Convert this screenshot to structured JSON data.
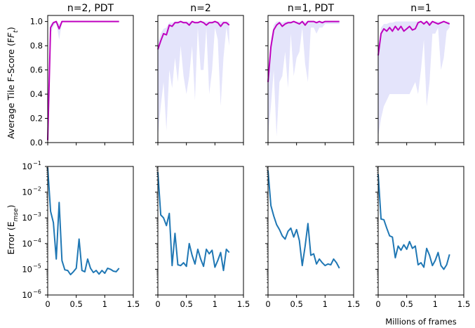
{
  "figure": {
    "xlabel": "Millions of frames",
    "ylabel_top": "Average Tile F-Score (F",
    "ylabel_top_sub": "t",
    "ylabel_top_close": ")",
    "ylabel_bottom": "Error (E",
    "ylabel_bottom_sub": "mse",
    "ylabel_bottom_close": ")"
  },
  "colors": {
    "fscore_line": "#bf00bf",
    "fscore_band": "#e4e4fb",
    "error_line": "#1f77b4",
    "axis": "#000000",
    "background": "#ffffff"
  },
  "chart_data": [
    {
      "type": "area",
      "title": "n=2, PDT",
      "ylabel": "Average Tile F-Score (Ft)",
      "xlim": [
        0,
        1.5
      ],
      "ylim": [
        0,
        1.05
      ],
      "xticks": [
        "0",
        "0.5",
        "1",
        "1.5"
      ],
      "yticks": [
        "0.0",
        "0.2",
        "0.4",
        "0.6",
        "0.8",
        "1.0"
      ],
      "x": [
        0.0,
        0.05,
        0.1,
        0.15,
        0.2,
        0.25,
        0.3,
        0.35,
        0.4,
        0.45,
        0.5,
        0.55,
        0.6,
        0.65,
        0.7,
        0.75,
        0.8,
        0.85,
        0.9,
        0.95,
        1.0,
        1.05,
        1.1,
        1.15,
        1.2,
        1.25
      ],
      "series": [
        {
          "values": [
            0.02,
            0.95,
            0.99,
            1.0,
            0.94,
            1.0,
            1.0,
            1.0,
            1.0,
            1.0,
            1.0,
            1.0,
            1.0,
            1.0,
            1.0,
            1.0,
            1.0,
            1.0,
            1.0,
            1.0,
            1.0,
            1.0,
            1.0,
            1.0,
            1.0,
            1.0
          ]
        },
        {
          "lower": [
            0.02,
            0.9,
            0.96,
            0.99,
            0.85,
            0.99,
            1.0,
            1.0,
            1.0,
            1.0,
            1.0,
            1.0,
            1.0,
            1.0,
            1.0,
            1.0,
            1.0,
            1.0,
            1.0,
            1.0,
            1.0,
            1.0,
            1.0,
            1.0,
            1.0,
            1.0
          ],
          "upper": [
            0.02,
            0.98,
            1.0,
            1.0,
            0.98,
            1.0,
            1.0,
            1.0,
            1.0,
            1.0,
            1.0,
            1.0,
            1.0,
            1.0,
            1.0,
            1.0,
            1.0,
            1.0,
            1.0,
            1.0,
            1.0,
            1.0,
            1.0,
            1.0,
            1.0,
            1.0
          ]
        }
      ]
    },
    {
      "type": "area",
      "title": "n=2",
      "xlim": [
        0,
        1.5
      ],
      "ylim": [
        0,
        1.05
      ],
      "xticks": [
        "0",
        "0.5",
        "1",
        "1.5"
      ],
      "x": [
        0.0,
        0.05,
        0.1,
        0.15,
        0.2,
        0.25,
        0.3,
        0.35,
        0.4,
        0.45,
        0.5,
        0.55,
        0.6,
        0.65,
        0.7,
        0.75,
        0.8,
        0.85,
        0.9,
        0.95,
        1.0,
        1.05,
        1.1,
        1.15,
        1.2,
        1.25
      ],
      "series": [
        {
          "values": [
            0.77,
            0.84,
            0.9,
            0.89,
            0.97,
            0.96,
            0.99,
            0.99,
            1.0,
            0.99,
            0.99,
            0.97,
            1.0,
            0.99,
            0.99,
            1.0,
            0.99,
            0.97,
            0.99,
            0.99,
            1.0,
            0.99,
            0.96,
            0.99,
            0.99,
            0.97
          ]
        },
        {
          "lower": [
            0.05,
            0.3,
            0.5,
            0.1,
            0.6,
            0.45,
            0.7,
            0.5,
            0.8,
            0.55,
            0.4,
            0.55,
            0.8,
            0.35,
            0.95,
            0.6,
            0.6,
            0.95,
            0.4,
            0.6,
            0.95,
            0.85,
            0.3,
            0.7,
            0.95,
            0.8
          ],
          "upper": [
            0.82,
            0.9,
            0.94,
            0.95,
            0.99,
            0.99,
            1.0,
            1.0,
            1.0,
            1.0,
            1.0,
            1.0,
            1.0,
            1.0,
            1.0,
            1.0,
            1.0,
            1.0,
            1.0,
            1.0,
            1.0,
            1.0,
            1.0,
            1.0,
            1.0,
            1.0
          ]
        }
      ]
    },
    {
      "type": "area",
      "title": "n=1, PDT",
      "xlim": [
        0,
        1.5
      ],
      "ylim": [
        0,
        1.05
      ],
      "xticks": [
        "0",
        "0.5",
        "1",
        "1.5"
      ],
      "x": [
        0.0,
        0.05,
        0.1,
        0.15,
        0.2,
        0.25,
        0.3,
        0.35,
        0.4,
        0.45,
        0.5,
        0.55,
        0.6,
        0.65,
        0.7,
        0.75,
        0.8,
        0.85,
        0.9,
        0.95,
        1.0,
        1.05,
        1.1,
        1.15,
        1.2,
        1.25
      ],
      "series": [
        {
          "values": [
            0.5,
            0.79,
            0.93,
            0.97,
            0.99,
            0.96,
            0.98,
            0.99,
            0.99,
            1.0,
            0.99,
            0.98,
            1.0,
            0.97,
            1.0,
            1.0,
            1.0,
            0.99,
            1.0,
            0.99,
            1.0,
            1.0,
            1.0,
            1.0,
            1.0,
            1.0
          ]
        },
        {
          "lower": [
            0.05,
            0.3,
            0.6,
            0.05,
            0.5,
            0.55,
            0.75,
            0.45,
            0.9,
            0.55,
            0.7,
            0.75,
            0.95,
            0.65,
            0.5,
            0.95,
            0.95,
            0.9,
            0.95,
            0.95,
            0.98,
            0.98,
            0.98,
            0.98,
            0.98,
            0.98
          ],
          "upper": [
            0.6,
            0.85,
            0.97,
            1.0,
            1.0,
            0.99,
            1.0,
            1.0,
            1.0,
            1.0,
            1.0,
            1.0,
            1.0,
            1.0,
            1.0,
            1.0,
            1.0,
            1.0,
            1.0,
            1.0,
            1.0,
            1.0,
            1.0,
            1.0,
            1.0,
            1.0
          ]
        }
      ]
    },
    {
      "type": "area",
      "title": "n=1",
      "xlim": [
        0,
        1.5
      ],
      "ylim": [
        0,
        1.05
      ],
      "xticks": [
        "0",
        "0.5",
        "1",
        "1.5"
      ],
      "x": [
        0.0,
        0.05,
        0.1,
        0.15,
        0.2,
        0.25,
        0.3,
        0.35,
        0.4,
        0.45,
        0.5,
        0.55,
        0.6,
        0.65,
        0.7,
        0.75,
        0.8,
        0.85,
        0.9,
        0.95,
        1.0,
        1.05,
        1.1,
        1.15,
        1.2,
        1.25
      ],
      "series": [
        {
          "values": [
            0.72,
            0.9,
            0.94,
            0.92,
            0.95,
            0.92,
            0.96,
            0.93,
            0.96,
            0.92,
            0.94,
            0.96,
            0.93,
            0.94,
            0.99,
            1.0,
            0.98,
            1.0,
            0.97,
            1.0,
            0.99,
            0.98,
            0.99,
            1.0,
            0.99,
            0.98
          ]
        },
        {
          "lower": [
            0.05,
            0.2,
            0.3,
            0.35,
            0.4,
            0.4,
            0.4,
            0.4,
            0.4,
            0.4,
            0.4,
            0.4,
            0.45,
            0.5,
            0.4,
            0.6,
            0.85,
            0.3,
            0.5,
            0.9,
            0.9,
            0.95,
            0.6,
            0.7,
            0.92,
            0.95
          ],
          "upper": [
            0.8,
            0.95,
            0.98,
            0.98,
            0.99,
            0.99,
            1.0,
            1.0,
            1.0,
            1.0,
            1.0,
            1.0,
            1.0,
            1.0,
            1.0,
            1.0,
            1.0,
            1.0,
            1.0,
            1.0,
            1.0,
            1.0,
            1.0,
            1.0,
            1.0,
            1.0
          ]
        }
      ]
    },
    {
      "type": "line",
      "yscale": "log",
      "ylabel": "Error (Emse)",
      "xlim": [
        0,
        1.5
      ],
      "ylim_exp": [
        -6,
        -1
      ],
      "xticks": [
        "0",
        "0.5",
        "1",
        "1.5"
      ],
      "yticks": [
        {
          "base": "10",
          "exp": "−1"
        },
        {
          "base": "10",
          "exp": "−2"
        },
        {
          "base": "10",
          "exp": "−3"
        },
        {
          "base": "10",
          "exp": "−4"
        },
        {
          "base": "10",
          "exp": "−5"
        },
        {
          "base": "10",
          "exp": "−6"
        }
      ],
      "x": [
        0.0,
        0.05,
        0.1,
        0.15,
        0.2,
        0.25,
        0.3,
        0.35,
        0.4,
        0.45,
        0.5,
        0.55,
        0.6,
        0.65,
        0.7,
        0.75,
        0.8,
        0.85,
        0.9,
        0.95,
        1.0,
        1.05,
        1.1,
        1.15,
        1.2,
        1.25
      ],
      "series": [
        {
          "values": [
            0.09,
            0.0018,
            0.00065,
            2.5e-05,
            0.004,
            2.2e-05,
            9.5e-06,
            9e-06,
            6.2e-06,
            8e-06,
            1.1e-05,
            0.00015,
            9e-06,
            8e-06,
            2.5e-05,
            1.1e-05,
            7.5e-06,
            9e-06,
            6.5e-06,
            9e-06,
            7e-06,
            1.1e-05,
            1e-05,
            8.5e-06,
            8e-06,
            1.1e-05
          ]
        }
      ]
    },
    {
      "type": "line",
      "yscale": "log",
      "xlim": [
        0,
        1.5
      ],
      "ylim_exp": [
        -6,
        -1
      ],
      "xticks": [
        "0",
        "0.5",
        "1",
        "1.5"
      ],
      "x": [
        0.0,
        0.05,
        0.1,
        0.15,
        0.2,
        0.25,
        0.3,
        0.35,
        0.4,
        0.45,
        0.5,
        0.55,
        0.6,
        0.65,
        0.7,
        0.75,
        0.8,
        0.85,
        0.9,
        0.95,
        1.0,
        1.05,
        1.1,
        1.15,
        1.2,
        1.25
      ],
      "series": [
        {
          "values": [
            0.06,
            0.0013,
            0.001,
            0.0005,
            0.0015,
            1.4e-05,
            0.00025,
            1.5e-05,
            1.4e-05,
            1.8e-05,
            1.3e-05,
            0.0001,
            3.5e-05,
            1.6e-05,
            6e-05,
            2.5e-05,
            1.3e-05,
            6e-05,
            4e-05,
            5.5e-05,
            1.2e-05,
            2.2e-05,
            4.5e-05,
            9e-06,
            6e-05,
            4.5e-05
          ]
        }
      ]
    },
    {
      "type": "line",
      "yscale": "log",
      "xlim": [
        0,
        1.5
      ],
      "ylim_exp": [
        -6,
        -1
      ],
      "xticks": [
        "0",
        "0.5",
        "1",
        "1.5"
      ],
      "x": [
        0.0,
        0.05,
        0.1,
        0.15,
        0.2,
        0.25,
        0.3,
        0.35,
        0.4,
        0.45,
        0.5,
        0.55,
        0.6,
        0.65,
        0.7,
        0.75,
        0.8,
        0.85,
        0.9,
        0.95,
        1.0,
        1.05,
        1.1,
        1.15,
        1.2,
        1.25
      ],
      "series": [
        {
          "values": [
            0.07,
            0.003,
            0.0012,
            0.00055,
            0.00035,
            0.0002,
            0.00015,
            0.0003,
            0.0004,
            0.00018,
            0.00035,
            0.00013,
            1.4e-05,
            8e-05,
            0.0006,
            3.5e-05,
            4e-05,
            1.6e-05,
            2.5e-05,
            1.8e-05,
            1.4e-05,
            1.6e-05,
            1.5e-05,
            2.5e-05,
            1.8e-05,
            1.1e-05
          ]
        }
      ]
    },
    {
      "type": "line",
      "yscale": "log",
      "xlim": [
        0,
        1.5
      ],
      "ylim_exp": [
        -6,
        -1
      ],
      "xticks": [
        "0",
        "0.5",
        "1",
        "1.5"
      ],
      "x": [
        0.0,
        0.05,
        0.1,
        0.15,
        0.2,
        0.25,
        0.3,
        0.35,
        0.4,
        0.45,
        0.5,
        0.55,
        0.6,
        0.65,
        0.7,
        0.75,
        0.8,
        0.85,
        0.9,
        0.95,
        1.0,
        1.05,
        1.1,
        1.15,
        1.2,
        1.25
      ],
      "series": [
        {
          "values": [
            0.05,
            0.0009,
            0.00085,
            0.0004,
            0.0002,
            0.00018,
            2.8e-05,
            8e-05,
            5.5e-05,
            9e-05,
            6e-05,
            0.00012,
            6.5e-05,
            8e-05,
            1.5e-05,
            1.8e-05,
            1.2e-05,
            6.5e-05,
            3.5e-05,
            1.4e-05,
            2.2e-05,
            4.5e-05,
            1.4e-05,
            1e-05,
            1.5e-05,
            3.8e-05
          ]
        }
      ]
    }
  ]
}
